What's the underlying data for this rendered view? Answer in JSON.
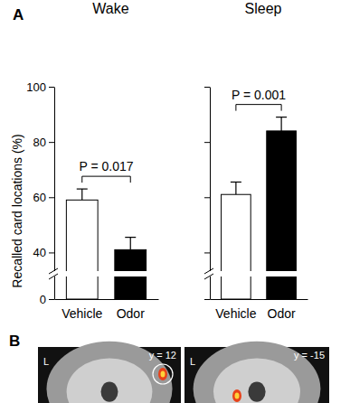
{
  "chart_data": [
    {
      "type": "bar",
      "title": "Wake",
      "y_label": "Recalled card locations (%)",
      "categories": [
        "Vehicle",
        "Odor"
      ],
      "values": [
        59,
        41
      ],
      "errors": [
        4,
        4.5
      ],
      "colors": [
        "#ffffff",
        "#000000"
      ],
      "ylim": [
        0,
        100
      ],
      "yticks": [
        0,
        40,
        60,
        80,
        100
      ],
      "annotation": "P = 0.017"
    },
    {
      "type": "bar",
      "title": "Sleep",
      "categories": [
        "Vehicle",
        "Odor"
      ],
      "values": [
        61,
        84
      ],
      "errors": [
        4.5,
        5
      ],
      "colors": [
        "#ffffff",
        "#000000"
      ],
      "ylim": [
        0,
        100
      ],
      "yticks": [
        0,
        40,
        60,
        80,
        100
      ],
      "tick_labels": "x",
      "annotation": "P = 0.001"
    }
  ],
  "figure": {
    "panel_labels": [
      "A",
      "B"
    ],
    "images": [
      {
        "slice": "y = 12",
        "side": "L"
      },
      {
        "slice": "y = -15",
        "side": "L"
      }
    ]
  }
}
